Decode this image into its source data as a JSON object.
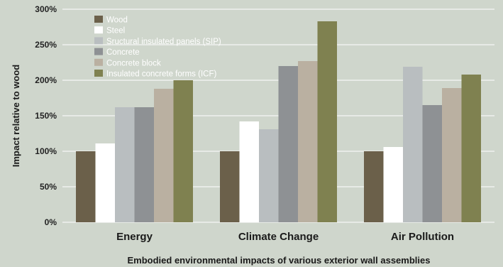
{
  "chart_data": {
    "type": "bar",
    "xlabel": "Embodied environmental impacts of various exterior wall assemblies",
    "ylabel": "Impact relative to wood",
    "categories": [
      "Energy",
      "Climate Change",
      "Air Pollution"
    ],
    "ylim": [
      0,
      300
    ],
    "yticks": [
      0,
      50,
      100,
      150,
      200,
      250,
      300
    ],
    "ytick_labels": [
      "0%",
      "50%",
      "100%",
      "150%",
      "200%",
      "250%",
      "300%"
    ],
    "grid": true,
    "legend_position": "top-left",
    "series": [
      {
        "name": "Wood",
        "color": "#6b604a",
        "values": [
          100,
          100,
          100
        ]
      },
      {
        "name": "Steel",
        "color": "#ffffff",
        "values": [
          111,
          142,
          106
        ]
      },
      {
        "name": "Sructural insulated panels (SIP)",
        "color": "#b9bec0",
        "values": [
          162,
          131,
          219
        ]
      },
      {
        "name": "Concrete",
        "color": "#8e9194",
        "values": [
          162,
          220,
          165
        ]
      },
      {
        "name": "Concrete block",
        "color": "#bab0a1",
        "values": [
          188,
          227,
          189
        ]
      },
      {
        "name": "Insulated concrete forms (ICF)",
        "color": "#7f8150",
        "values": [
          200,
          283,
          208
        ]
      }
    ]
  }
}
